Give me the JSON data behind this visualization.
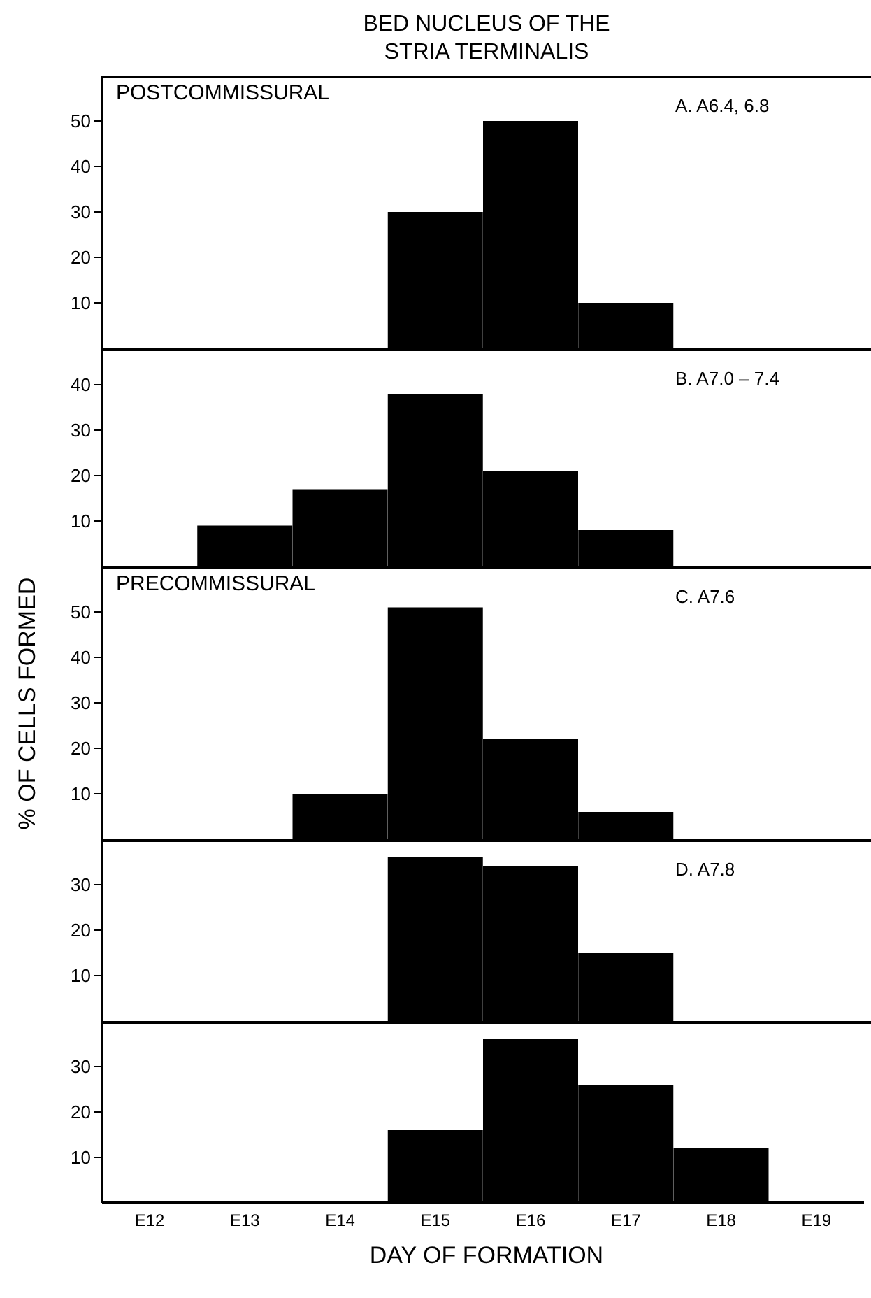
{
  "chart_data": [
    {
      "type": "bar",
      "title": "BED NUCLEUS OF THE\nSTRIA TERMINALIS",
      "categories": [
        null,
        null,
        null,
        null,
        null,
        null,
        null,
        null
      ],
      "values": [
        0,
        0,
        0,
        30,
        50,
        10,
        0,
        0
      ],
      "color": "#000000",
      "ylim": [
        0,
        60
      ],
      "yticks": [
        10,
        20,
        30,
        40,
        50
      ],
      "tick_labels": "y",
      "annotations": [
        "POSTCOMMISSURAL",
        "A. A6.4, 6.8"
      ]
    },
    {
      "type": "bar",
      "categories": [
        null,
        null,
        null,
        null,
        null,
        null,
        null,
        null
      ],
      "values": [
        0,
        9,
        17,
        38,
        21,
        8,
        0,
        0
      ],
      "color": "#000000",
      "ylim": [
        0,
        48
      ],
      "yticks": [
        10,
        20,
        30,
        40
      ],
      "tick_labels": "y",
      "annotations": [
        "B. A7.0 – 7.4"
      ]
    },
    {
      "type": "bar",
      "ylabel": "% OF CELLS FORMED",
      "categories": [
        null,
        null,
        null,
        null,
        null,
        null,
        null,
        null
      ],
      "values": [
        0,
        0,
        10,
        51,
        22,
        6,
        0,
        0
      ],
      "color": "#000000",
      "ylim": [
        0,
        60
      ],
      "yticks": [
        10,
        20,
        30,
        40,
        50
      ],
      "tick_labels": "y",
      "annotations": [
        "PRECOMMISSURAL",
        "C. A7.6"
      ]
    },
    {
      "type": "bar",
      "categories": [
        null,
        null,
        null,
        null,
        null,
        null,
        null,
        null
      ],
      "values": [
        0,
        0,
        0,
        36,
        34,
        15,
        0,
        0
      ],
      "color": "#000000",
      "ylim": [
        0,
        40
      ],
      "yticks": [
        10,
        20,
        30
      ],
      "tick_labels": "y",
      "annotations": [
        "D. A7.8"
      ]
    },
    {
      "type": "bar",
      "xlabel": "DAY OF FORMATION",
      "categories": [
        "E12",
        "E13",
        "E14",
        "E15",
        "E16",
        "E17",
        "E18",
        "E19"
      ],
      "values": [
        0,
        0,
        0,
        16,
        36,
        26,
        12,
        0
      ],
      "color": "#000000",
      "ylim": [
        0,
        40
      ],
      "yticks": [
        10,
        20,
        30
      ]
    }
  ]
}
